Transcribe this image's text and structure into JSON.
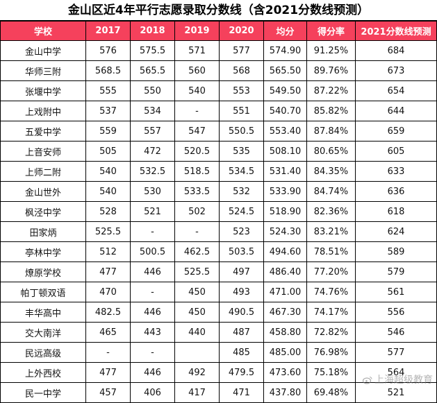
{
  "title": "金山区近4年平行志愿录取分数线（含2021分数线预测）",
  "headers": [
    "学校",
    "2017",
    "2018",
    "2019",
    "2020",
    "均分",
    "得分率",
    "2021分数线预测"
  ],
  "rows": [
    [
      "金山中学",
      "576",
      "575.5",
      "571",
      "577",
      "574.90",
      "91.25%",
      "684"
    ],
    [
      "华师三附",
      "568.5",
      "565.5",
      "560",
      "568",
      "565.50",
      "89.76%",
      "673"
    ],
    [
      "张堰中学",
      "555",
      "550",
      "540",
      "553",
      "549.50",
      "87.22%",
      "654"
    ],
    [
      "上戏附中",
      "537",
      "534",
      "-",
      "551",
      "540.70",
      "85.82%",
      "644"
    ],
    [
      "五爱中学",
      "559",
      "557",
      "547",
      "550.5",
      "553.40",
      "87.84%",
      "659"
    ],
    [
      "上音安师",
      "505",
      "472",
      "520.5",
      "535",
      "508.10",
      "80.65%",
      "605"
    ],
    [
      "上师二附",
      "540",
      "532.5",
      "518.5",
      "534.5",
      "531.40",
      "84.35%",
      "633"
    ],
    [
      "金山世外",
      "540",
      "530",
      "533.5",
      "532",
      "533.90",
      "84.74%",
      "636"
    ],
    [
      "枫泾中学",
      "528",
      "521",
      "502",
      "524.5",
      "518.90",
      "82.36%",
      "618"
    ],
    [
      "田家炳",
      "525.5",
      "-",
      "-",
      "523",
      "524.30",
      "83.21%",
      "624"
    ],
    [
      "亭林中学",
      "512",
      "500.5",
      "462.5",
      "503.5",
      "494.60",
      "78.51%",
      "589"
    ],
    [
      "燎原学校",
      "477",
      "446",
      "525.5",
      "497",
      "486.40",
      "77.20%",
      "579"
    ],
    [
      "帕丁顿双语",
      "470",
      "-",
      "450",
      "493",
      "471.00",
      "74.76%",
      "561"
    ],
    [
      "丰华高中",
      "482.5",
      "446",
      "450",
      "490.5",
      "467.30",
      "74.17%",
      "556"
    ],
    [
      "交大南洋",
      "465",
      "443",
      "440",
      "487",
      "458.80",
      "72.82%",
      "546"
    ],
    [
      "民远高级",
      "-",
      "-",
      "",
      "485",
      "485.00",
      "76.98%",
      "577"
    ],
    [
      "上外西校",
      "477",
      "446",
      "492",
      "479.5",
      "473.60",
      "75.18%",
      "564"
    ],
    [
      "民一中学",
      "457",
      "406",
      "417",
      "471",
      "437.80",
      "69.48%",
      "521"
    ]
  ],
  "watermark": "上海超级教育",
  "colors": {
    "header_bg": "#f5415c",
    "header_text": "#ffffff"
  }
}
